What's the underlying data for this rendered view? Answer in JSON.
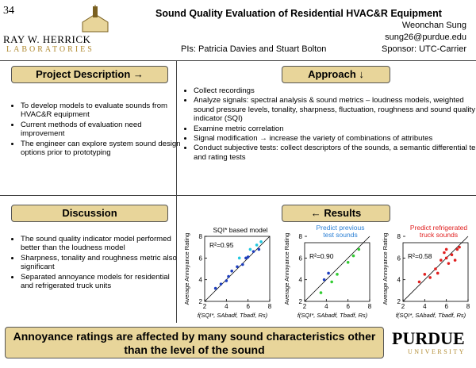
{
  "header": {
    "page_number": "34",
    "title": "Sound Quality Evaluation of Residential HVAC&R Equipment",
    "author": "Weonchan Sung",
    "email": "sung26@purdue.edu",
    "pis": "PIs: Patricia Davies and Stuart Bolton",
    "sponsor": "Sponsor: UTC-Carrier",
    "logo_name": "RAY W. HERRICK",
    "logo_sub": "LABORATORIES"
  },
  "sections": {
    "project_description": {
      "heading": "Project Description →",
      "bullets": [
        "To develop models to evaluate sounds from HVAC&R equipment",
        "Current methods of evaluation need improvement",
        "The engineer can explore system sound design options prior to prototyping"
      ]
    },
    "approach": {
      "heading": "Approach ↓",
      "bullets": [
        "Collect recordings",
        "Analyze signals: spectral analysis & sound metrics – loudness models, weighted sound pressure levels, tonality, sharpness, fluctuation, roughness and sound quality indicator (SQI)",
        "Examine metric correlation",
        "Signal modification → increase the variety of combinations of attributes",
        "Conduct subjective tests: collect descriptors of the sounds, a semantic differential test and rating tests"
      ]
    },
    "discussion": {
      "heading": "Discussion",
      "bullets": [
        "The sound quality indicator model performed better than the loudness model",
        "Sharpness, tonality and roughness metric also significant",
        "Separated annoyance models for residential and refrigerated truck units"
      ]
    },
    "results": {
      "heading": "← Results"
    }
  },
  "chart_data": [
    {
      "type": "scatter",
      "title": "SQI* based model",
      "annotation": "R²=0.95",
      "ylabel": "Average Annoyance Rating",
      "xlabel": "f(SQI*, SAbadf, Tbadf, Rs)",
      "xlim": [
        2,
        8
      ],
      "ylim": [
        2,
        8
      ],
      "xticks": [
        2,
        4,
        6,
        8
      ],
      "yticks": [
        2,
        4,
        6,
        8
      ],
      "title_color": "#000000",
      "series": [
        {
          "name": null,
          "color": "#1f3fbf",
          "x": [
            3.0,
            3.5,
            4.0,
            4.2,
            4.5,
            5.0,
            5.5,
            5.8,
            6.0,
            6.5,
            7.0
          ],
          "values": [
            3.2,
            3.6,
            3.9,
            4.3,
            4.8,
            5.2,
            5.4,
            6.0,
            6.1,
            6.6,
            6.8
          ]
        },
        {
          "name": null,
          "color": "#22c8e0",
          "x": [
            5.2,
            6.2,
            6.8,
            7.2
          ],
          "values": [
            6.0,
            6.8,
            7.2,
            7.5
          ]
        }
      ]
    },
    {
      "type": "scatter",
      "title": "Predict previous test sounds",
      "annotation": "R²=0.90",
      "ylabel": "Average Annoyance Rating",
      "xlabel": "f(SQI*, SAbadf, Tbadf, Rs)",
      "xlim": [
        2,
        8
      ],
      "ylim": [
        2,
        8
      ],
      "xticks": [
        2,
        4,
        6,
        8
      ],
      "yticks": [
        2,
        4,
        6,
        8
      ],
      "title_color": "#2a7fd4",
      "series": [
        {
          "name": null,
          "color": "#33cc33",
          "x": [
            3.5,
            4.5,
            5.0,
            6.0,
            6.5,
            7.0
          ],
          "values": [
            2.8,
            3.8,
            4.5,
            5.6,
            6.2,
            6.8
          ]
        },
        {
          "name": null,
          "color": "#1f3fbf",
          "x": [
            3.8,
            4.2
          ],
          "values": [
            4.0,
            4.6
          ]
        }
      ]
    },
    {
      "type": "scatter",
      "title": "Predict refrigerated truck sounds",
      "annotation": "R²=0.58",
      "ylabel": "Average Annoyance Rating",
      "xlabel": "f(SQI*, SAbadf, Tbadf, Rs)",
      "xlim": [
        2,
        8
      ],
      "ylim": [
        2,
        8
      ],
      "xticks": [
        2,
        4,
        6,
        8
      ],
      "yticks": [
        2,
        4,
        6,
        8
      ],
      "title_color": "#e02020",
      "series": [
        {
          "name": null,
          "color": "#e02020",
          "x": [
            3.5,
            4.0,
            4.5,
            5.0,
            5.2,
            5.5,
            5.8,
            6.0,
            6.0,
            6.2,
            6.5,
            6.8,
            7.0,
            7.2
          ],
          "values": [
            3.8,
            4.5,
            4.2,
            5.0,
            4.6,
            5.8,
            6.5,
            6.0,
            6.8,
            5.5,
            6.3,
            5.8,
            6.8,
            7.0
          ]
        }
      ]
    }
  ],
  "footer": {
    "conclusion": "Annoyance ratings are affected by many sound characteristics other than the level of the sound",
    "logo_name": "PURDUE",
    "logo_sub": "UNIVERSITY"
  }
}
